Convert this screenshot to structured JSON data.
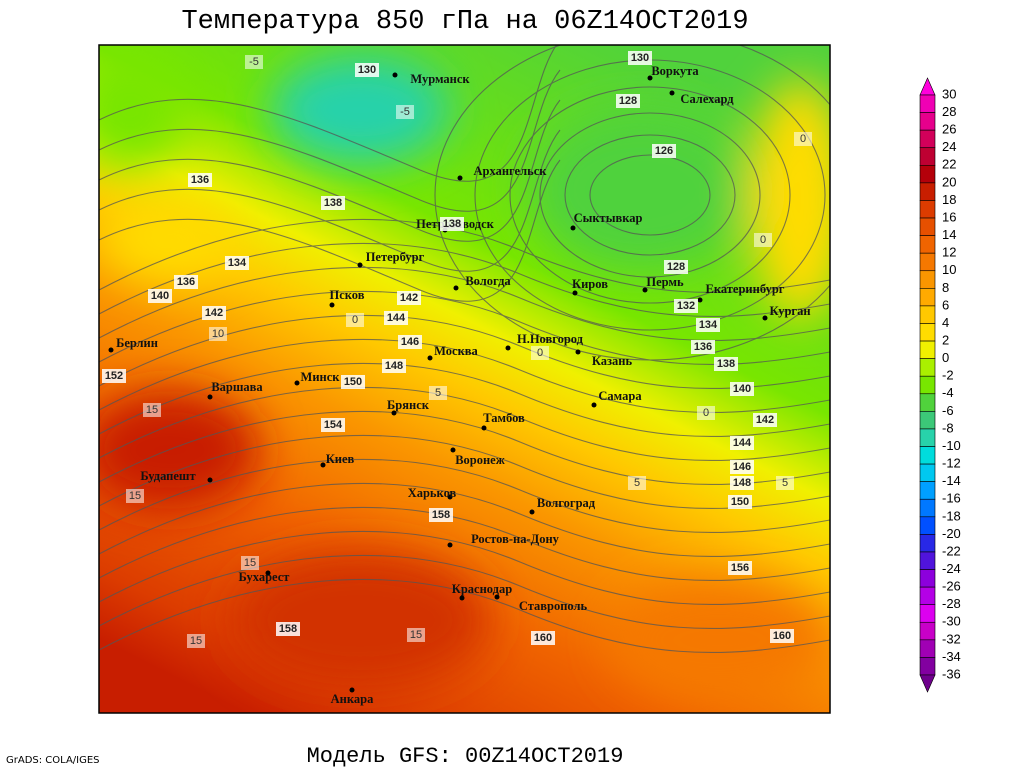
{
  "title": "Температура 850 гПа на 06Z14OCT2019",
  "footer": "Модель GFS: 00Z14OCT2019",
  "credit": "GrADS: COLA/IGES",
  "cities": [
    "Мурманск",
    "Воркута",
    "Салехард",
    "Архангельск",
    "Сыктывкар",
    "Петрозаводск",
    "Петербург",
    "Псков",
    "Вологда",
    "Киров",
    "Пермь",
    "Екатеринбург",
    "Курган",
    "Н.Новгород",
    "Москва",
    "Казань",
    "Минск",
    "Берлин",
    "Варшава",
    "Брянск",
    "Тамбов",
    "Самара",
    "Киев",
    "Воронеж",
    "Будапешт",
    "Харьков",
    "Волгоград",
    "Ростов-на-Дону",
    "Бухарест",
    "Краснодар",
    "Ставрополь",
    "Анкара"
  ],
  "height_labels": [
    130,
    130,
    128,
    126,
    136,
    138,
    138,
    134,
    136,
    140,
    142,
    142,
    144,
    146,
    148,
    150,
    152,
    154,
    158,
    158,
    160,
    160,
    156,
    150,
    148,
    146,
    144,
    142,
    140,
    138,
    136,
    134,
    132,
    128
  ],
  "temperature_labels": [
    -5,
    -5,
    0,
    0,
    5,
    10,
    15,
    15,
    15,
    15,
    15,
    5,
    5,
    0,
    0,
    0
  ],
  "colorbar": {
    "values": [
      30,
      28,
      26,
      24,
      22,
      20,
      18,
      16,
      14,
      12,
      10,
      8,
      6,
      4,
      2,
      0,
      -2,
      -4,
      -6,
      -8,
      -10,
      -12,
      -14,
      -16,
      -18,
      -20,
      -22,
      -24,
      -26,
      -28,
      -30,
      -32,
      -34,
      -36
    ],
    "colors": [
      "#ff00dc",
      "#f000b4",
      "#e6008c",
      "#d2005a",
      "#be0032",
      "#b4000a",
      "#c81e00",
      "#dc3c00",
      "#e65000",
      "#f06400",
      "#f57800",
      "#fa9600",
      "#ffaa00",
      "#ffc800",
      "#ffdc00",
      "#f0f000",
      "#aaf000",
      "#78e600",
      "#50d23c",
      "#3cc878",
      "#28d2aa",
      "#00dcdc",
      "#00c8f0",
      "#00a0ff",
      "#0078ff",
      "#0050ff",
      "#2828e6",
      "#5014dc",
      "#8c00dc",
      "#b400e6",
      "#dc00f0",
      "#c800c8",
      "#a000b4",
      "#8200a0",
      "#6e008c"
    ]
  }
}
